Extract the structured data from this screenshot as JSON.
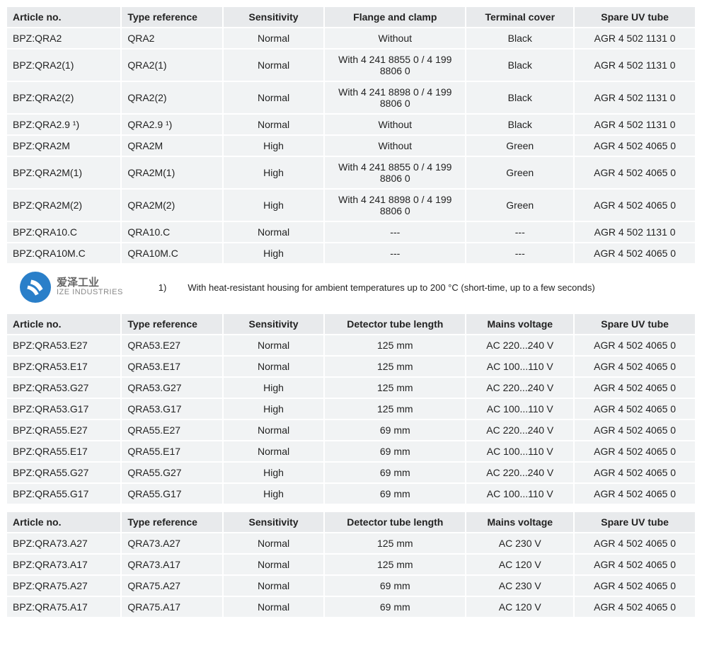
{
  "colors": {
    "row_bg": "#f1f3f4",
    "header_bg": "#e8eaec",
    "text": "#222222",
    "logo_blue": "#2a7fc9",
    "logo_grey": "#777777"
  },
  "fonts": {
    "family": "Arial",
    "base_size_pt": 11,
    "header_weight": "bold"
  },
  "table1": {
    "columns": [
      {
        "label": "Article no.",
        "align": "left"
      },
      {
        "label": "Type reference",
        "align": "left"
      },
      {
        "label": "Sensitivity",
        "align": "center"
      },
      {
        "label": "Flange and clamp",
        "align": "center"
      },
      {
        "label": "Terminal cover",
        "align": "center"
      },
      {
        "label": "Spare UV tube",
        "align": "center"
      }
    ],
    "rows": [
      [
        "BPZ:QRA2",
        "QRA2",
        "Normal",
        "Without",
        "Black",
        "AGR 4 502 1131 0"
      ],
      [
        "BPZ:QRA2(1)",
        "QRA2(1)",
        "Normal",
        "With 4 241 8855 0 / 4 199 8806 0",
        "Black",
        "AGR 4 502 1131 0"
      ],
      [
        "BPZ:QRA2(2)",
        "QRA2(2)",
        "Normal",
        "With 4 241 8898 0 / 4 199 8806 0",
        "Black",
        "AGR 4 502 1131 0"
      ],
      [
        "BPZ:QRA2.9 ¹)",
        "QRA2.9 ¹)",
        "Normal",
        "Without",
        "Black",
        "AGR 4 502 1131 0"
      ],
      [
        "BPZ:QRA2M",
        "QRA2M",
        "High",
        "Without",
        "Green",
        "AGR 4 502 4065 0"
      ],
      [
        "BPZ:QRA2M(1)",
        "QRA2M(1)",
        "High",
        "With 4 241 8855 0 / 4 199 8806 0",
        "Green",
        "AGR 4 502 4065 0"
      ],
      [
        "BPZ:QRA2M(2)",
        "QRA2M(2)",
        "High",
        "With 4 241 8898 0 / 4 199 8806 0",
        "Green",
        "AGR 4 502 4065 0"
      ],
      [
        "BPZ:QRA10.C",
        "QRA10.C",
        "Normal",
        "---",
        "---",
        "AGR 4 502 1131 0"
      ],
      [
        "BPZ:QRA10M.C",
        "QRA10M.C",
        "High",
        "---",
        "---",
        "AGR 4 502 4065 0"
      ]
    ]
  },
  "footnote": {
    "marker": "1)",
    "text": "With heat-resistant housing for ambient temperatures up to 200 °C (short-time, up to a few seconds)"
  },
  "logo": {
    "cn": "爱泽工业",
    "en": "IZE INDUSTRIES"
  },
  "table2": {
    "columns": [
      {
        "label": "Article no.",
        "align": "left"
      },
      {
        "label": "Type reference",
        "align": "left"
      },
      {
        "label": "Sensitivity",
        "align": "center"
      },
      {
        "label": "Detector tube length",
        "align": "center"
      },
      {
        "label": "Mains voltage",
        "align": "center"
      },
      {
        "label": "Spare UV tube",
        "align": "center"
      }
    ],
    "rows": [
      [
        "BPZ:QRA53.E27",
        "QRA53.E27",
        "Normal",
        "125 mm",
        "AC 220...240 V",
        "AGR 4 502 4065 0"
      ],
      [
        "BPZ:QRA53.E17",
        "QRA53.E17",
        "Normal",
        "125 mm",
        "AC 100...110 V",
        "AGR 4 502 4065 0"
      ],
      [
        "BPZ:QRA53.G27",
        "QRA53.G27",
        "High",
        "125 mm",
        "AC 220...240 V",
        "AGR 4 502 4065 0"
      ],
      [
        "BPZ:QRA53.G17",
        "QRA53.G17",
        "High",
        "125 mm",
        "AC 100...110 V",
        "AGR 4 502 4065 0"
      ],
      [
        "BPZ:QRA55.E27",
        "QRA55.E27",
        "Normal",
        "69 mm",
        "AC 220...240 V",
        "AGR 4 502 4065 0"
      ],
      [
        "BPZ:QRA55.E17",
        "QRA55.E17",
        "Normal",
        "69 mm",
        "AC 100...110 V",
        "AGR 4 502 4065 0"
      ],
      [
        "BPZ:QRA55.G27",
        "QRA55.G27",
        "High",
        "69 mm",
        "AC 220...240 V",
        "AGR 4 502 4065 0"
      ],
      [
        "BPZ:QRA55.G17",
        "QRA55.G17",
        "High",
        "69 mm",
        "AC 100...110 V",
        "AGR 4 502 4065 0"
      ]
    ]
  },
  "table3": {
    "columns": [
      {
        "label": "Article no.",
        "align": "left"
      },
      {
        "label": "Type reference",
        "align": "left"
      },
      {
        "label": "Sensitivity",
        "align": "center"
      },
      {
        "label": "Detector tube length",
        "align": "center"
      },
      {
        "label": "Mains voltage",
        "align": "center"
      },
      {
        "label": "Spare UV tube",
        "align": "center"
      }
    ],
    "rows": [
      [
        "BPZ:QRA73.A27",
        "QRA73.A27",
        "Normal",
        "125 mm",
        "AC 230 V",
        "AGR 4 502 4065 0"
      ],
      [
        "BPZ:QRA73.A17",
        "QRA73.A17",
        "Normal",
        "125 mm",
        "AC 120 V",
        "AGR 4 502 4065 0"
      ],
      [
        "BPZ:QRA75.A27",
        "QRA75.A27",
        "Normal",
        "69 mm",
        "AC 230 V",
        "AGR 4 502 4065 0"
      ],
      [
        "BPZ:QRA75.A17",
        "QRA75.A17",
        "Normal",
        "69 mm",
        "AC 120 V",
        "AGR 4 502 4065 0"
      ]
    ]
  },
  "column_widths_pct": [
    17,
    15,
    15,
    21,
    16,
    18
  ]
}
